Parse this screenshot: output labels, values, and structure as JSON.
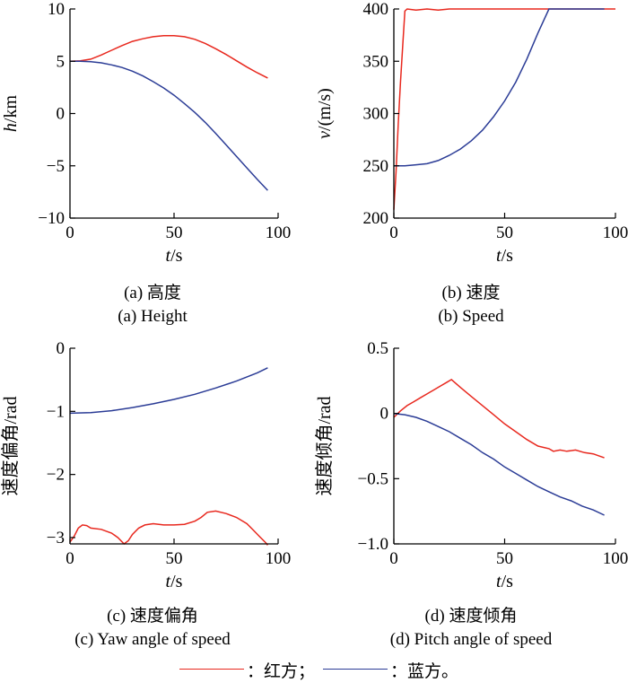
{
  "colors": {
    "red": "#e8281e",
    "blue": "#2b3c96",
    "axis": "#000000"
  },
  "legend": {
    "red_label": "：红方；",
    "blue_label": "：蓝方。"
  },
  "chart_data": [
    {
      "id": "a",
      "type": "line",
      "caption_cn": "(a) 高度",
      "caption_en": "(a) Height",
      "xlabel_var": "t",
      "xlabel_unit": "/s",
      "ylabel_var": "h",
      "ylabel_unit": "/km",
      "xlim": [
        0,
        100
      ],
      "ylim": [
        -10,
        10
      ],
      "xticks": [
        0,
        50,
        100
      ],
      "yticks": [
        -10,
        -5,
        0,
        5,
        10
      ],
      "ytick_labels": [
        "−10",
        "−5",
        "0",
        "5",
        "10"
      ],
      "series": [
        {
          "color": "red",
          "x": [
            0,
            5,
            10,
            15,
            20,
            25,
            30,
            35,
            40,
            45,
            50,
            55,
            60,
            65,
            70,
            75,
            80,
            85,
            90,
            95
          ],
          "y": [
            5,
            5.05,
            5.2,
            5.6,
            6.05,
            6.5,
            6.9,
            7.15,
            7.35,
            7.45,
            7.45,
            7.35,
            7.1,
            6.7,
            6.2,
            5.65,
            5.05,
            4.45,
            3.9,
            3.4
          ]
        },
        {
          "color": "blue",
          "x": [
            0,
            5,
            10,
            15,
            20,
            25,
            30,
            35,
            40,
            45,
            50,
            55,
            60,
            65,
            70,
            75,
            80,
            85,
            90,
            95
          ],
          "y": [
            5,
            5,
            4.95,
            4.85,
            4.65,
            4.4,
            4.05,
            3.6,
            3.05,
            2.45,
            1.75,
            0.95,
            0.1,
            -0.85,
            -1.9,
            -3.0,
            -4.1,
            -5.2,
            -6.3,
            -7.35
          ]
        }
      ]
    },
    {
      "id": "b",
      "type": "line",
      "caption_cn": "(b) 速度",
      "caption_en": "(b) Speed",
      "xlabel_var": "t",
      "xlabel_unit": "/s",
      "ylabel_var": "v",
      "ylabel_unit": "/(m/s)",
      "xlim": [
        0,
        100
      ],
      "ylim": [
        200,
        400
      ],
      "xticks": [
        0,
        50,
        100
      ],
      "yticks": [
        200,
        250,
        300,
        350,
        400
      ],
      "ytick_labels": [
        "200",
        "250",
        "300",
        "350",
        "400"
      ],
      "series": [
        {
          "color": "red",
          "x": [
            0,
            1,
            2,
            3,
            4,
            5,
            6,
            10,
            15,
            20,
            25,
            30,
            50,
            75,
            100
          ],
          "y": [
            208,
            245,
            290,
            330,
            365,
            398,
            400,
            399,
            400,
            399,
            400,
            400,
            400,
            400,
            400
          ]
        },
        {
          "color": "blue",
          "x": [
            0,
            5,
            10,
            15,
            20,
            25,
            30,
            35,
            40,
            45,
            50,
            55,
            60,
            65,
            70,
            75,
            80,
            85,
            90,
            95
          ],
          "y": [
            250,
            250,
            251,
            252,
            255,
            260,
            266,
            274,
            284,
            297,
            312,
            330,
            352,
            377,
            400,
            400,
            400,
            400,
            400,
            400
          ]
        }
      ]
    },
    {
      "id": "c",
      "type": "line",
      "caption_cn": "(c) 速度偏角",
      "caption_en": "(c) Yaw angle of speed",
      "xlabel_var": "t",
      "xlabel_unit": "/s",
      "ylabel_var": "速度偏角",
      "ylabel_unit": "/rad",
      "xlim": [
        0,
        100
      ],
      "ylim": [
        -3.1,
        0
      ],
      "xticks": [
        0,
        50,
        100
      ],
      "yticks": [
        -3,
        -2,
        -1,
        0
      ],
      "ytick_labels": [
        "−3",
        "−2",
        "−1",
        "0"
      ],
      "series": [
        {
          "color": "red",
          "x": [
            0,
            2,
            4,
            6,
            8,
            10,
            15,
            20,
            23,
            26,
            28,
            30,
            33,
            36,
            40,
            45,
            50,
            55,
            60,
            63,
            66,
            70,
            75,
            80,
            85,
            88,
            91,
            94,
            95
          ],
          "y": [
            -3.07,
            -2.98,
            -2.85,
            -2.8,
            -2.81,
            -2.85,
            -2.87,
            -2.93,
            -3.0,
            -3.1,
            -3.05,
            -2.95,
            -2.85,
            -2.8,
            -2.78,
            -2.8,
            -2.8,
            -2.79,
            -2.74,
            -2.68,
            -2.6,
            -2.58,
            -2.62,
            -2.68,
            -2.78,
            -2.88,
            -2.98,
            -3.08,
            -3.12
          ]
        },
        {
          "color": "blue",
          "x": [
            0,
            10,
            20,
            30,
            40,
            50,
            60,
            70,
            80,
            90,
            95
          ],
          "y": [
            -1.03,
            -1.02,
            -0.99,
            -0.94,
            -0.88,
            -0.81,
            -0.73,
            -0.63,
            -0.52,
            -0.39,
            -0.31
          ]
        }
      ]
    },
    {
      "id": "d",
      "type": "line",
      "caption_cn": "(d) 速度倾角",
      "caption_en": "(d) Pitch angle of speed",
      "xlabel_var": "t",
      "xlabel_unit": "/s",
      "ylabel_var": "速度倾角",
      "ylabel_unit": "/rad",
      "xlim": [
        0,
        100
      ],
      "ylim": [
        -1.0,
        0.5
      ],
      "xticks": [
        0,
        50,
        100
      ],
      "yticks": [
        -1.0,
        -0.5,
        0,
        0.5
      ],
      "ytick_labels": [
        "−1.0",
        "−0.5",
        "0",
        "0.5"
      ],
      "series": [
        {
          "color": "red",
          "x": [
            0,
            3,
            6,
            9,
            12,
            15,
            18,
            21,
            24,
            26,
            30,
            35,
            40,
            45,
            50,
            55,
            60,
            65,
            70,
            72,
            75,
            78,
            82,
            86,
            90,
            95
          ],
          "y": [
            -0.03,
            0.02,
            0.06,
            0.09,
            0.12,
            0.15,
            0.18,
            0.21,
            0.24,
            0.26,
            0.2,
            0.13,
            0.06,
            -0.01,
            -0.08,
            -0.14,
            -0.2,
            -0.25,
            -0.27,
            -0.29,
            -0.28,
            -0.29,
            -0.28,
            -0.3,
            -0.31,
            -0.34
          ]
        },
        {
          "color": "blue",
          "x": [
            0,
            5,
            10,
            15,
            20,
            25,
            30,
            35,
            40,
            45,
            50,
            55,
            60,
            65,
            70,
            75,
            80,
            85,
            90,
            95
          ],
          "y": [
            0,
            -0.01,
            -0.03,
            -0.06,
            -0.1,
            -0.14,
            -0.19,
            -0.24,
            -0.3,
            -0.35,
            -0.41,
            -0.46,
            -0.51,
            -0.56,
            -0.6,
            -0.64,
            -0.67,
            -0.71,
            -0.74,
            -0.78
          ]
        }
      ]
    }
  ]
}
